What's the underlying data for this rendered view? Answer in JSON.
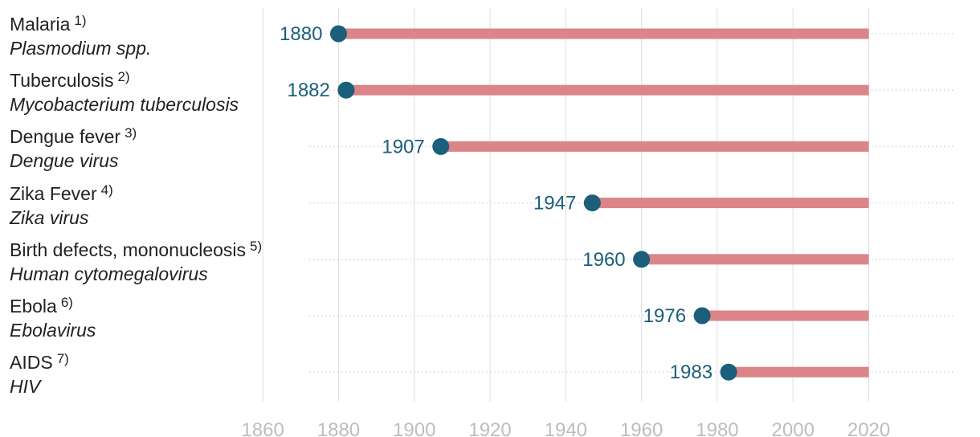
{
  "chart_data": {
    "type": "dumbbell",
    "title": "",
    "xlabel": "",
    "ylabel": "",
    "xlim": [
      1857,
      2043
    ],
    "x_ticks": [
      1860,
      1880,
      1900,
      1920,
      1940,
      1960,
      1980,
      2000,
      2020
    ],
    "grid": {
      "vertical": true,
      "horizontal_dotted": true
    },
    "end_year": 2020,
    "colors": {
      "point": "#1b5f7a",
      "bar": "#dc8588",
      "label": "#1b5f7a",
      "grid": "#e3e3e3",
      "tick": "#bdbdbd"
    },
    "rows": [
      {
        "name": "Malaria",
        "note": "1)",
        "pathogen": "Plasmodium spp.",
        "year": 1880,
        "label": "1880"
      },
      {
        "name": "Tuberculosis",
        "note": "2)",
        "pathogen": "Mycobacterium tuberculosis",
        "year": 1882,
        "label": "1882"
      },
      {
        "name": "Dengue fever",
        "note": "3)",
        "pathogen": "Dengue virus",
        "year": 1907,
        "label": "1907"
      },
      {
        "name": "Zika Fever",
        "note": "4)",
        "pathogen": "Zika virus",
        "year": 1947,
        "label": "1947"
      },
      {
        "name": "Birth defects, mononucleosis",
        "note": "5)",
        "pathogen": "Human cytomegalovirus",
        "year": 1960,
        "label": "1960"
      },
      {
        "name": "Ebola",
        "note": "6)",
        "pathogen": "Ebolavirus",
        "year": 1976,
        "label": "1976"
      },
      {
        "name": "AIDS",
        "note": "7)",
        "pathogen": "HIV",
        "year": 1983,
        "label": "1983"
      }
    ]
  }
}
